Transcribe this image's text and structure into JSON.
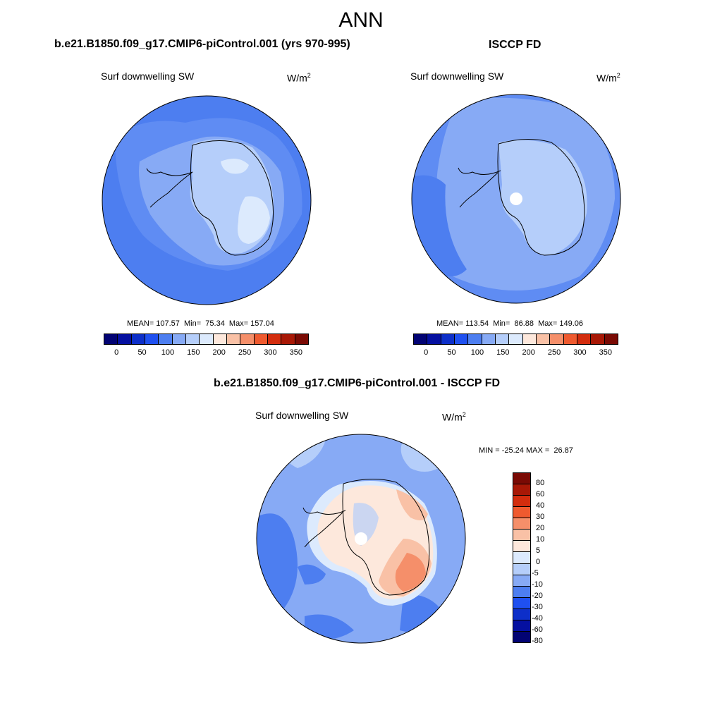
{
  "main_title": "ANN",
  "palette": [
    "#020373",
    "#0510a0",
    "#0d2fc9",
    "#1f50f0",
    "#4d7ef0",
    "#87aaf5",
    "#b5cefa",
    "#dceafd",
    "#fde8dc",
    "#f9c1a6",
    "#f58f6a",
    "#ef5a2f",
    "#d32d0e",
    "#a81806",
    "#7a0a04"
  ],
  "colors": {
    "land_top": "#dceafd",
    "land_top2": "#b5cefa",
    "ocean_top": "#5f8cf3",
    "ocean_top2": "#87aaf5",
    "diff_ocean": "#87aaf5",
    "diff_ocean_dark": "#4d7ef0",
    "diff_land": "#fde8dc",
    "diff_land2": "#f9c1a6",
    "diff_land3": "#f58f6a"
  },
  "panels": {
    "left": {
      "title": "b.e21.B1850.f09_g17.CMIP6-piControl.001 (yrs 970-995)",
      "variable": "Surf downwelling SW",
      "units_base": "W/m",
      "units_exp": "2",
      "stats": "MEAN= 107.57  Min=  75.34  Max= 157.04"
    },
    "right": {
      "title": "ISCCP FD",
      "variable": "Surf downwelling SW",
      "units_base": "W/m",
      "units_exp": "2",
      "stats": "MEAN= 113.54  Min=  86.88  Max= 149.06"
    },
    "diff": {
      "title": "b.e21.B1850.f09_g17.CMIP6-piControl.001 - ISCCP FD",
      "variable": "Surf downwelling SW",
      "units_base": "W/m",
      "units_exp": "2",
      "stats": "MIN = -25.24 MAX =  26.87"
    }
  },
  "colorbar_abs": {
    "ticks": [
      "0",
      "50",
      "100",
      "150",
      "200",
      "250",
      "300",
      "350"
    ]
  },
  "colorbar_diff": {
    "ticks": [
      "80",
      "60",
      "40",
      "30",
      "20",
      "10",
      "5",
      "0",
      "-5",
      "-10",
      "-20",
      "-30",
      "-40",
      "-60",
      "-80"
    ]
  }
}
